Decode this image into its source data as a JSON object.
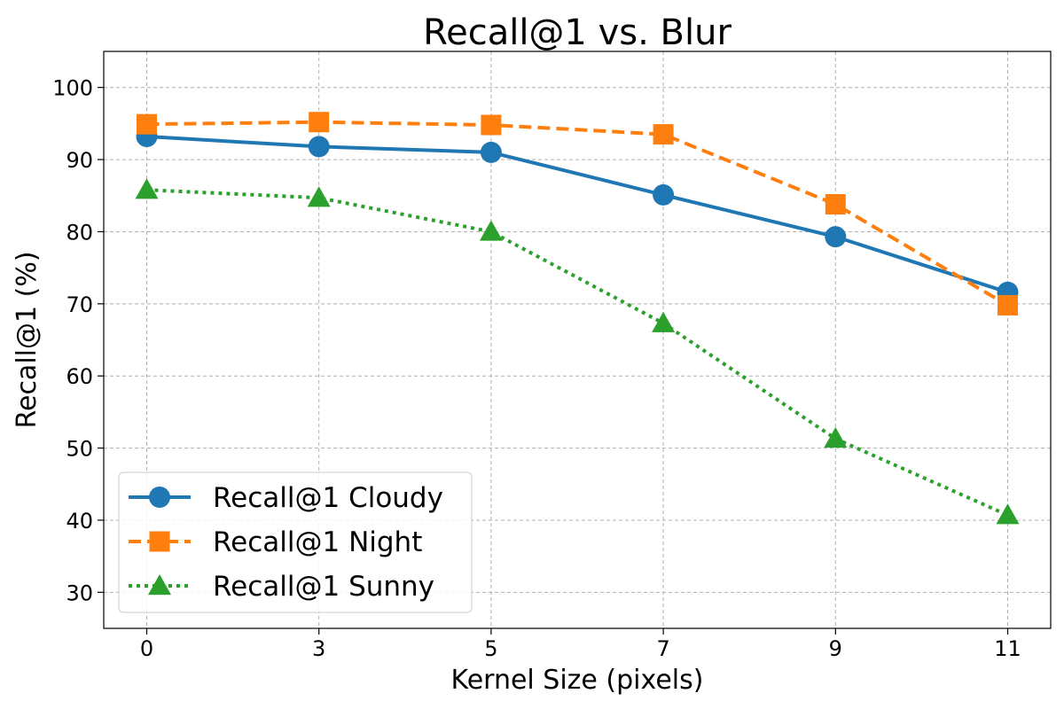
{
  "chart_data": {
    "type": "line",
    "title": "Recall@1 vs. Blur",
    "xlabel": "Kernel Size (pixels)",
    "ylabel": "Recall@1 (%)",
    "categories": [
      "0",
      "3",
      "5",
      "7",
      "9",
      "11"
    ],
    "yticks": [
      "30",
      "40",
      "50",
      "60",
      "70",
      "80",
      "90",
      "100"
    ],
    "ylim": [
      25,
      105
    ],
    "grid": true,
    "legend_position": "lower-left",
    "series": [
      {
        "name": "Recall@1 Cloudy",
        "values": [
          93.2,
          91.8,
          91.0,
          85.1,
          79.3,
          71.6
        ],
        "color": "#1f77b4",
        "marker": "circle",
        "linestyle": "solid"
      },
      {
        "name": "Recall@1 Night",
        "values": [
          94.9,
          95.2,
          94.8,
          93.5,
          83.8,
          69.8
        ],
        "color": "#ff7f0e",
        "marker": "square",
        "linestyle": "dashed"
      },
      {
        "name": "Recall@1 Sunny",
        "values": [
          85.8,
          84.7,
          80.0,
          67.3,
          51.3,
          40.7
        ],
        "color": "#2ca02c",
        "marker": "triangle",
        "linestyle": "dotted"
      }
    ]
  }
}
